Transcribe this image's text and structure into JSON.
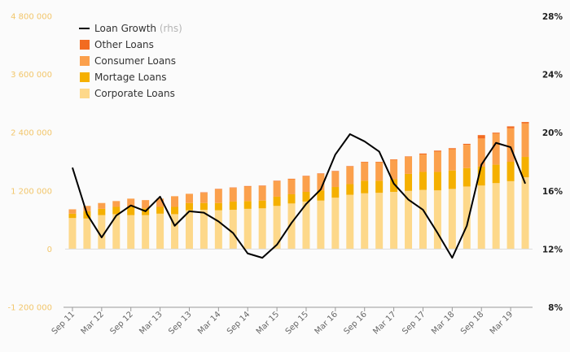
{
  "chart_data": {
    "type": "bar",
    "stacked": true,
    "x": [
      "Sep 11",
      "Dec 11",
      "Mar 12",
      "Jun 12",
      "Sep 12",
      "Dec 12",
      "Mar 13",
      "Jun 13",
      "Sep 13",
      "Dec 13",
      "Mar 14",
      "Jun 14",
      "Sep 14",
      "Dec 14",
      "Mar 15",
      "Jun 15",
      "Sep 15",
      "Dec 15",
      "Mar 16",
      "Jun 16",
      "Sep 16",
      "Dec 16",
      "Mar 17",
      "Jun 17",
      "Sep 17",
      "Dec 17",
      "Mar 18",
      "Jun 18",
      "Sep 18",
      "Dec 18",
      "Mar 19",
      "Jun 19"
    ],
    "x_tick_labels": [
      "Sep 11",
      "Mar 12",
      "Sep 12",
      "Mar 13",
      "Sep 13",
      "Mar 14",
      "Sep 14",
      "Mar 15",
      "Sep 15",
      "Mar 16",
      "Sep 16",
      "Mar 17",
      "Sep 17",
      "Mar 18",
      "Sep 18",
      "Mar 19"
    ],
    "series": [
      {
        "name": "Corporate Loans",
        "color": "#fdd88a",
        "axis": "left",
        "values": [
          640000,
          630000,
          700000,
          720000,
          700000,
          700000,
          730000,
          720000,
          800000,
          810000,
          800000,
          810000,
          830000,
          840000,
          890000,
          940000,
          980000,
          1000000,
          1060000,
          1120000,
          1150000,
          1160000,
          1180000,
          1200000,
          1220000,
          1210000,
          1240000,
          1290000,
          1310000,
          1360000,
          1400000,
          1480000
        ]
      },
      {
        "name": "Mortage Loans",
        "color": "#f5b000",
        "axis": "left",
        "values": [
          90000,
          150000,
          130000,
          150000,
          170000,
          140000,
          140000,
          150000,
          150000,
          140000,
          150000,
          170000,
          160000,
          160000,
          190000,
          190000,
          200000,
          210000,
          220000,
          220000,
          260000,
          250000,
          260000,
          350000,
          370000,
          380000,
          380000,
          380000,
          390000,
          380000,
          400000,
          420000
        ]
      },
      {
        "name": "Consumer Loans",
        "color": "#fba04c",
        "axis": "left",
        "values": [
          90000,
          110000,
          120000,
          120000,
          170000,
          170000,
          170000,
          220000,
          190000,
          210000,
          280000,
          280000,
          300000,
          300000,
          320000,
          310000,
          320000,
          340000,
          320000,
          360000,
          380000,
          380000,
          400000,
          350000,
          360000,
          420000,
          440000,
          480000,
          580000,
          640000,
          690000,
          690000
        ]
      },
      {
        "name": "Other Loans",
        "color": "#f26b21",
        "axis": "left",
        "values": [
          0,
          0,
          0,
          0,
          0,
          0,
          0,
          0,
          0,
          10000,
          10000,
          10000,
          10000,
          10000,
          10000,
          10000,
          10000,
          10000,
          10000,
          10000,
          10000,
          10000,
          10000,
          10000,
          20000,
          20000,
          20000,
          20000,
          70000,
          20000,
          40000,
          30000
        ]
      },
      {
        "name": "Loan Growth",
        "name_suffix": "(rhs)",
        "type": "line",
        "color": "#000000",
        "axis": "right",
        "values": [
          17.6,
          14.4,
          12.8,
          14.3,
          15.0,
          14.6,
          15.6,
          13.6,
          14.6,
          14.5,
          13.9,
          13.1,
          11.7,
          11.4,
          12.3,
          13.8,
          15.1,
          16.1,
          18.5,
          19.9,
          19.4,
          18.7,
          16.5,
          15.4,
          14.7,
          13.1,
          11.4,
          13.6,
          17.8,
          19.3,
          19.0,
          16.5
        ]
      }
    ],
    "y_left": {
      "min": -1200000,
      "max": 4800000,
      "ticks": [
        -1200000,
        0,
        1200000,
        2400000,
        3600000,
        4800000
      ],
      "tick_labels": [
        "-1 200 000",
        "0",
        "1 200 000",
        "2 400 000",
        "3 600 000",
        "4 800 000"
      ]
    },
    "y_right": {
      "min": 8,
      "max": 28,
      "ticks": [
        8,
        12,
        16,
        20,
        24,
        28
      ],
      "tick_labels": [
        "8%",
        "12%",
        "16%",
        "20%",
        "24%",
        "28%"
      ]
    },
    "legend": {
      "placement": "top-left",
      "order": [
        "Loan Growth",
        "Other Loans",
        "Consumer Loans",
        "Mortage Loans",
        "Corporate Loans"
      ]
    },
    "grid": false
  }
}
